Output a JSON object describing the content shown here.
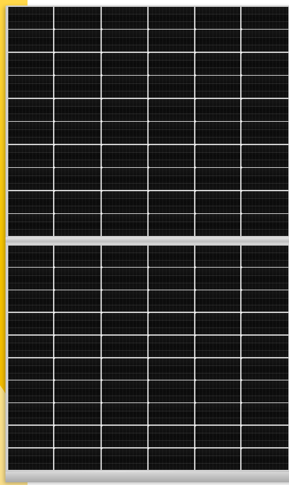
{
  "scene": {
    "subject": "solar-panel",
    "colors": {
      "background": "#ffffff",
      "accent_yellow": "#f5c400",
      "accent_yellow_light": "#ffd84a",
      "frame": "#c8c8c8",
      "cell": "#111111",
      "grid_line": "#dcdcdc"
    },
    "panel": {
      "halves": 2,
      "columns_visible": 6,
      "rows_per_half": 10
    }
  }
}
